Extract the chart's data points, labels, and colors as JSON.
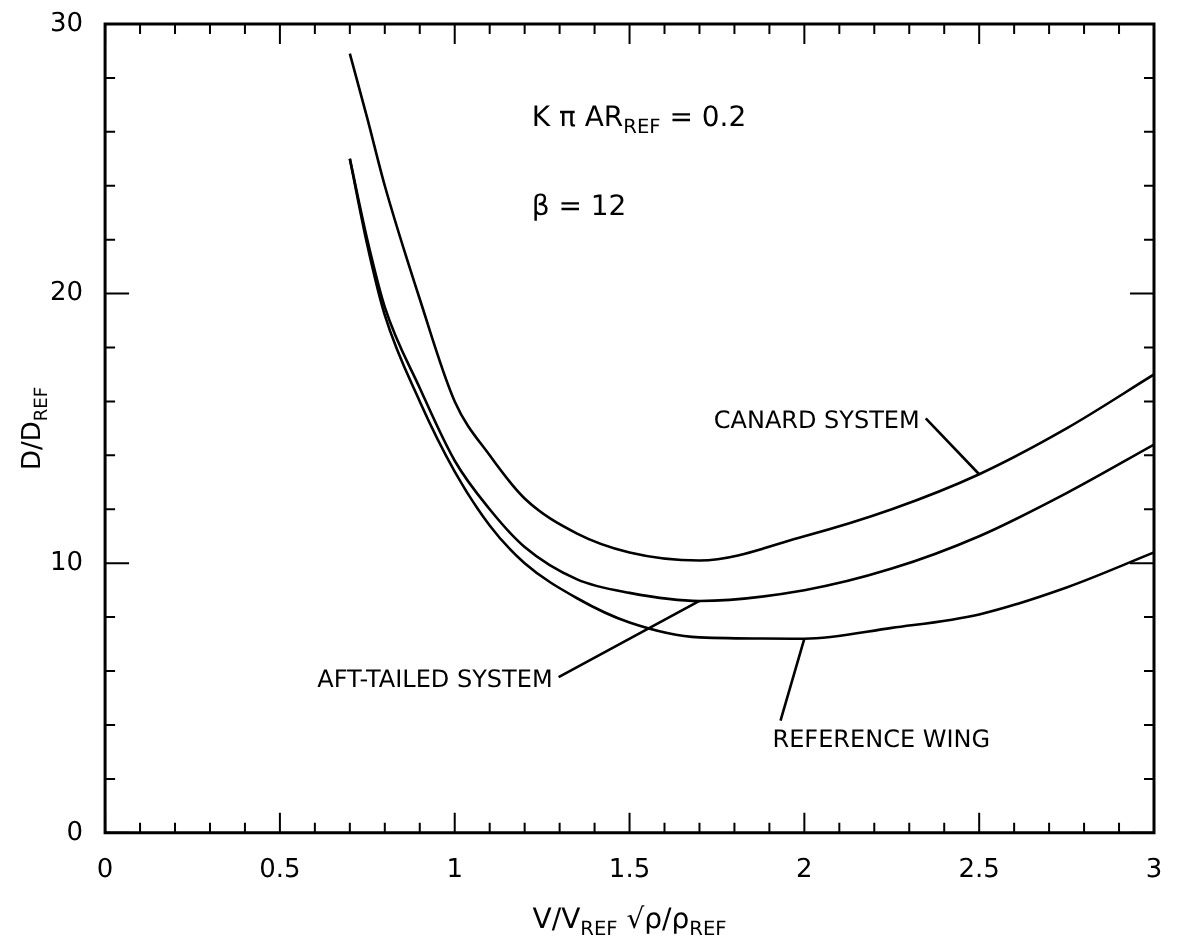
{
  "chart_data": {
    "type": "line",
    "xlabel": "V/V$_{REF}$ √ρ/ρ$_{REF}$",
    "ylabel": "D/D$_{REF}$",
    "annotations": [
      "K π AR$_{REF}$ = 0.2",
      "β = 12"
    ],
    "xlim": [
      0,
      3
    ],
    "ylim": [
      0,
      30
    ],
    "xticks": [
      0,
      {
        "value": 0.1,
        "label": null
      },
      {
        "value": 0.2,
        "label": null
      },
      {
        "value": 0.3,
        "label": null
      },
      {
        "value": 0.4,
        "label": null
      },
      0.5,
      {
        "value": 0.6,
        "label": null
      },
      {
        "value": 0.7,
        "label": null
      },
      {
        "value": 0.8,
        "label": null
      },
      {
        "value": 0.9,
        "label": null
      },
      1,
      {
        "value": 1.1,
        "label": null
      },
      {
        "value": 1.2,
        "label": null
      },
      {
        "value": 1.3,
        "label": null
      },
      {
        "value": 1.4,
        "label": null
      },
      1.5,
      {
        "value": 1.6,
        "label": null
      },
      {
        "value": 1.7,
        "label": null
      },
      {
        "value": 1.8,
        "label": null
      },
      {
        "value": 1.9,
        "label": null
      },
      2,
      {
        "value": 2.1,
        "label": null
      },
      {
        "value": 2.2,
        "label": null
      },
      {
        "value": 2.3,
        "label": null
      },
      {
        "value": 2.4,
        "label": null
      },
      2.5,
      {
        "value": 2.6,
        "label": null
      },
      {
        "value": 2.7,
        "label": null
      },
      {
        "value": 2.8,
        "label": null
      },
      {
        "value": 2.9,
        "label": null
      },
      3
    ],
    "yticks": [
      0,
      {
        "value": 2,
        "label": null
      },
      {
        "value": 4,
        "label": null
      },
      {
        "value": 6,
        "label": null
      },
      {
        "value": 8,
        "label": null
      },
      10,
      {
        "value": 12,
        "label": null
      },
      {
        "value": 14,
        "label": null
      },
      {
        "value": 16,
        "label": null
      },
      {
        "value": 18,
        "label": null
      },
      20,
      {
        "value": 22,
        "label": null
      },
      {
        "value": 24,
        "label": null
      },
      {
        "value": 26,
        "label": null
      },
      {
        "value": 28,
        "label": null
      },
      30
    ],
    "grid": false,
    "marker": "none",
    "line_style": "solid",
    "x": [
      0.7,
      0.75,
      0.8,
      0.9,
      1.0,
      1.1,
      1.2,
      1.35,
      1.5,
      1.7,
      2.0,
      2.25,
      2.5,
      2.75,
      3.0
    ],
    "series": [
      {
        "name": "CANARD SYSTEM",
        "color": "#000000",
        "values": [
          28.9,
          26.5,
          24.0,
          19.8,
          16.0,
          14.0,
          12.4,
          11.1,
          10.4,
          10.1,
          11.0,
          12.0,
          13.3,
          15.0,
          17.0
        ]
      },
      {
        "name": "AFT-TAILED SYSTEM",
        "color": "#000000",
        "values": [
          25.0,
          22.0,
          19.5,
          16.5,
          13.8,
          12.0,
          10.6,
          9.4,
          8.9,
          8.6,
          9.0,
          9.8,
          11.0,
          12.6,
          14.4
        ]
      },
      {
        "name": "REFERENCE WING",
        "color": "#000000",
        "values": [
          25.0,
          21.8,
          19.2,
          16.0,
          13.4,
          11.4,
          10.0,
          8.7,
          7.8,
          7.25,
          7.2,
          7.6,
          8.1,
          9.1,
          10.4
        ]
      }
    ]
  }
}
